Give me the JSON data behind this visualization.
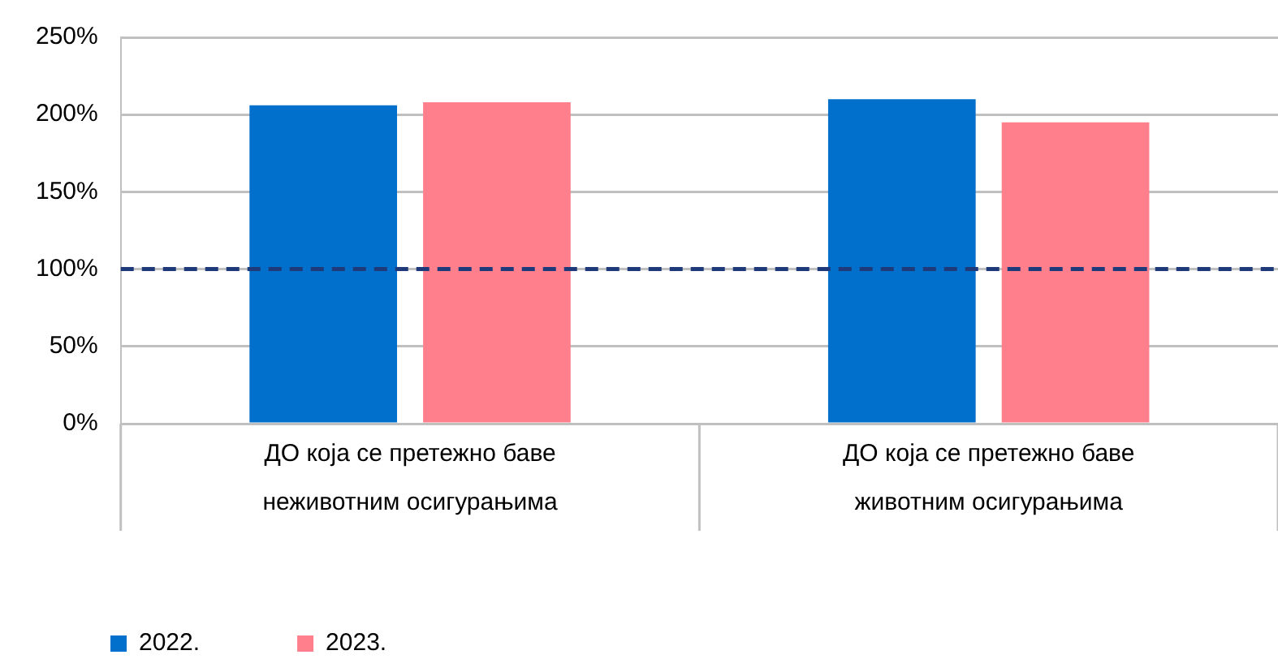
{
  "chart_data": {
    "type": "bar",
    "categories": [
      "ДО која се претежно баве неживотним осигурањима",
      "ДО која се претежно баве животним осигурањима"
    ],
    "series": [
      {
        "name": "2022.",
        "color": "#0070cc",
        "values": [
          206,
          210
        ]
      },
      {
        "name": "2023.",
        "color": "#ff808c",
        "values": [
          208,
          195
        ]
      }
    ],
    "ylim": [
      0,
      250
    ],
    "yticks": [
      {
        "value": 0,
        "label": "0%"
      },
      {
        "value": 50,
        "label": "50%"
      },
      {
        "value": 100,
        "label": "100%"
      },
      {
        "value": 150,
        "label": "150%"
      },
      {
        "value": 200,
        "label": "200%"
      },
      {
        "value": 250,
        "label": "250%"
      }
    ],
    "ref_lines": [
      {
        "axis": "y",
        "value": 100,
        "color": "#1f3a7a",
        "line_style": "dashed"
      }
    ],
    "grid": "y",
    "legend": "bottom left"
  }
}
